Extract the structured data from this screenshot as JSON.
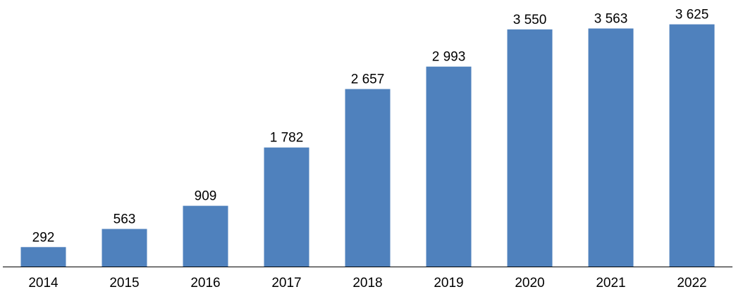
{
  "chart_data": {
    "type": "bar",
    "categories": [
      "2014",
      "2015",
      "2016",
      "2017",
      "2018",
      "2019",
      "2020",
      "2021",
      "2022"
    ],
    "values": [
      292,
      563,
      909,
      1782,
      2657,
      2993,
      3550,
      3563,
      3625
    ],
    "data_labels": [
      "292",
      "563",
      "909",
      "1 782",
      "2 657",
      "2 993",
      "3 550",
      "3 563",
      "3 625"
    ],
    "title": "",
    "xlabel": "",
    "ylabel": "",
    "ylim": [
      0,
      3600
    ],
    "grid": false,
    "legend": "none",
    "bar_color": "#4F81BD",
    "axis_color": "#000000"
  }
}
